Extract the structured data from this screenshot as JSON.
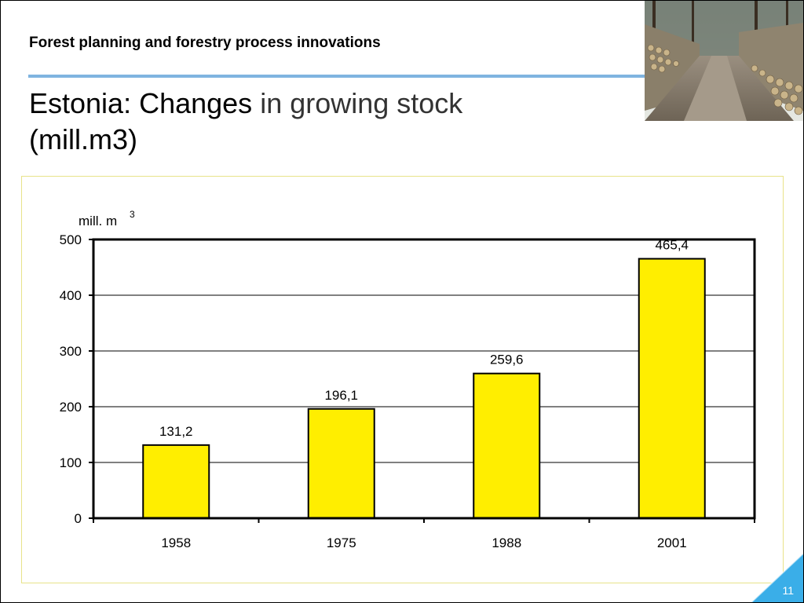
{
  "slide": {
    "header_title": "Forest planning and forestry process innovations",
    "title_part1": "Estonia: Changes",
    "title_part2": " in growing stock",
    "title_line2": "(mill.m3)",
    "page_number": "11"
  },
  "photo": {
    "description": "photo-of-stacked-log-piles-along-forest-road"
  },
  "colors": {
    "accent_rule": "#7fb4e0",
    "bar_fill": "#ffee00",
    "chart_border": "#e8e38a",
    "badge": "#3aaee8"
  },
  "chart_data": {
    "type": "bar",
    "title": "",
    "ylabel_main": "mill. m",
    "ylabel_sup": "3",
    "xlabel": "",
    "categories": [
      "1958",
      "1975",
      "1988",
      "2001"
    ],
    "values": [
      131.2,
      196.1,
      259.6,
      465.4
    ],
    "value_labels": [
      "131,2",
      "196,1",
      "259,6",
      "465,4"
    ],
    "yticks": [
      0,
      100,
      200,
      300,
      400,
      500
    ],
    "ytick_labels": [
      "0",
      "100",
      "200",
      "300",
      "400",
      "500"
    ],
    "ylim": [
      0,
      500
    ],
    "grid": true
  }
}
